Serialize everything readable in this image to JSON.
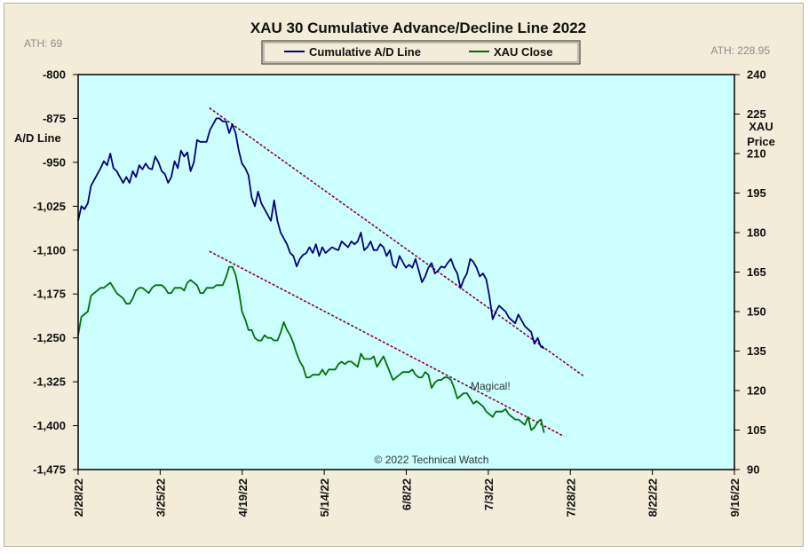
{
  "chart_data": {
    "type": "line",
    "title": "XAU 30 Cumulative  Advance/Decline  Line  2022",
    "ath_left": "ATH: 69",
    "ath_right": "ATH: 228.95",
    "ylabel_left": "A/D Line",
    "ylabel_right_line1": "XAU",
    "ylabel_right_line2": "Price",
    "copyright": "© 2022 Technical Watch",
    "annotation": "Magical!",
    "background_color": "#ccffff",
    "grid": false,
    "legend_position": "top-center",
    "x_range": [
      "2022-02-28",
      "2022-09-16"
    ],
    "x_ticks": [
      "2/28/22",
      "3/25/22",
      "4/19/22",
      "5/14/22",
      "6/8/22",
      "7/3/22",
      "7/28/22",
      "8/22/22",
      "9/16/22"
    ],
    "y_left": {
      "range": [
        -1475,
        -800
      ],
      "ticks": [
        -800,
        -875,
        -950,
        -1025,
        -1100,
        -1175,
        -1250,
        -1325,
        -1400,
        -1475
      ],
      "tick_labels": [
        "-800",
        "-875",
        "-950",
        "-1,025",
        "-1,100",
        "-1,175",
        "-1,250",
        "-1,325",
        "-1,400",
        "-1,475"
      ]
    },
    "y_right": {
      "range": [
        90,
        240
      ],
      "ticks": [
        90,
        105,
        120,
        135,
        150,
        165,
        180,
        195,
        210,
        225,
        240
      ],
      "tick_labels": [
        "90",
        "105",
        "120",
        "135",
        "150",
        "165",
        "180",
        "195",
        "210",
        "225",
        "240"
      ]
    },
    "series": [
      {
        "name": "Cumulative A/D Line",
        "axis": "left",
        "color": "#000080",
        "x": [
          0,
          1,
          2,
          3,
          4,
          5,
          6,
          7,
          8,
          9,
          10,
          11,
          12,
          13,
          14,
          15,
          16,
          17,
          18,
          19,
          20,
          21,
          22,
          23,
          24,
          25,
          26,
          27,
          28,
          29,
          30,
          31,
          32,
          33,
          34,
          35,
          36,
          37,
          38,
          39,
          40,
          41,
          42,
          43,
          44,
          45,
          46,
          47,
          48,
          49,
          50,
          51,
          52,
          53,
          54,
          55,
          56,
          57,
          58,
          59,
          60,
          61,
          62,
          63,
          64,
          65,
          66,
          67,
          68,
          69,
          70,
          71,
          72,
          73,
          74,
          75,
          76,
          77,
          78,
          79,
          80,
          81,
          82,
          83,
          84,
          85,
          86,
          87,
          88,
          89,
          90,
          91,
          92,
          93,
          94,
          95,
          96,
          97,
          98,
          99,
          100,
          101,
          102,
          103,
          104,
          105,
          106,
          107,
          108,
          109,
          110,
          111,
          112,
          113,
          114,
          115,
          116,
          117,
          118,
          119,
          120,
          121,
          122,
          123,
          124,
          125,
          126,
          127,
          128,
          129,
          130,
          131,
          132,
          133,
          134,
          135,
          136,
          137,
          138,
          139,
          140,
          141,
          142,
          143,
          144,
          145
        ],
        "values": [
          -1050,
          -1025,
          -1030,
          -1020,
          -990,
          -980,
          -970,
          -960,
          -948,
          -955,
          -935,
          -960,
          -965,
          -975,
          -985,
          -975,
          -985,
          -965,
          -975,
          -955,
          -962,
          -952,
          -960,
          -962,
          -940,
          -950,
          -965,
          -970,
          -985,
          -975,
          -948,
          -960,
          -930,
          -940,
          -933,
          -965,
          -950,
          -912,
          -915,
          -915,
          -915,
          -895,
          -885,
          -875,
          -875,
          -880,
          -880,
          -900,
          -885,
          -900,
          -930,
          -952,
          -960,
          -972,
          -1010,
          -1025,
          -1000,
          -1020,
          -1030,
          -1040,
          -1050,
          -1015,
          -1050,
          -1070,
          -1080,
          -1090,
          -1105,
          -1110,
          -1128,
          -1115,
          -1108,
          -1105,
          -1095,
          -1105,
          -1090,
          -1110,
          -1095,
          -1105,
          -1100,
          -1095,
          -1098,
          -1100,
          -1085,
          -1090,
          -1095,
          -1085,
          -1090,
          -1085,
          -1070,
          -1100,
          -1095,
          -1085,
          -1100,
          -1100,
          -1090,
          -1095,
          -1110,
          -1100,
          -1125,
          -1130,
          -1110,
          -1120,
          -1130,
          -1125,
          -1130,
          -1115,
          -1135,
          -1155,
          -1145,
          -1130,
          -1122,
          -1140,
          -1135,
          -1128,
          -1130,
          -1122,
          -1115,
          -1130,
          -1140,
          -1165,
          -1150,
          -1140,
          -1115,
          -1120,
          -1130,
          -1145,
          -1140,
          -1150,
          -1180,
          -1218,
          -1205,
          -1195,
          -1200,
          -1205,
          -1215,
          -1220,
          -1225,
          -1210,
          -1220,
          -1230,
          -1235,
          -1240,
          -1260,
          -1250,
          -1265,
          -1268
        ]
      },
      {
        "name": "XAU Close",
        "axis": "right",
        "color": "#007000",
        "x": [
          0,
          1,
          2,
          3,
          4,
          5,
          6,
          7,
          8,
          9,
          10,
          11,
          12,
          13,
          14,
          15,
          16,
          17,
          18,
          19,
          20,
          21,
          22,
          23,
          24,
          25,
          26,
          27,
          28,
          29,
          30,
          31,
          32,
          33,
          34,
          35,
          36,
          37,
          38,
          39,
          40,
          41,
          42,
          43,
          44,
          45,
          46,
          47,
          48,
          49,
          50,
          51,
          52,
          53,
          54,
          55,
          56,
          57,
          58,
          59,
          60,
          61,
          62,
          63,
          64,
          65,
          66,
          67,
          68,
          69,
          70,
          71,
          72,
          73,
          74,
          75,
          76,
          77,
          78,
          79,
          80,
          81,
          82,
          83,
          84,
          85,
          86,
          87,
          88,
          89,
          90,
          91,
          92,
          93,
          94,
          95,
          96,
          97,
          98,
          99,
          100,
          101,
          102,
          103,
          104,
          105,
          106,
          107,
          108,
          109,
          110,
          111,
          112,
          113,
          114,
          115,
          116,
          117,
          118,
          119,
          120,
          121,
          122,
          123,
          124,
          125,
          126,
          127,
          128,
          129,
          130,
          131,
          132,
          133,
          134,
          135,
          136,
          137,
          138,
          139,
          140,
          141,
          142,
          143,
          144,
          145
        ],
        "values": [
          141,
          148,
          149,
          150,
          156,
          157,
          158,
          159,
          159,
          160,
          161,
          159,
          157,
          156,
          155,
          153,
          153,
          155,
          158,
          159,
          159,
          158,
          157,
          159,
          160,
          160,
          160,
          159,
          157,
          157,
          159,
          159,
          159,
          158,
          161,
          162,
          161,
          160,
          157,
          157,
          159,
          159,
          159,
          160,
          160,
          160,
          163,
          167,
          167,
          164,
          158,
          150,
          147,
          143,
          143,
          140,
          139,
          139,
          141,
          140,
          140,
          139,
          139,
          142,
          146,
          143,
          141,
          138,
          134,
          131,
          129,
          125,
          125,
          126,
          126,
          126,
          128,
          126,
          128,
          128,
          128,
          130,
          131,
          130,
          131,
          131,
          130,
          129,
          134,
          132,
          132,
          132,
          133,
          129,
          131,
          133,
          130,
          127,
          124,
          125,
          126,
          127,
          127,
          127,
          128,
          126,
          125,
          125,
          127,
          126,
          121,
          123,
          124,
          124,
          125,
          125,
          124,
          121,
          117,
          118,
          119,
          119,
          117,
          115,
          116,
          115,
          114,
          112,
          111,
          110,
          112,
          112,
          112,
          113,
          111,
          110,
          109,
          109,
          108,
          107,
          110,
          105,
          106,
          108,
          109,
          104
        ]
      }
    ],
    "trendlines": [
      {
        "axis": "left",
        "color": "#8b0030",
        "x0_date": "2022-04-09",
        "y0": -857,
        "x1_date": "2022-08-01",
        "y1": -1315
      },
      {
        "axis": "left",
        "color": "#8b0030",
        "x0_date": "2022-04-09",
        "y0": -1102,
        "x1_date": "2022-07-26",
        "y1": -1418
      }
    ]
  },
  "legend": {
    "items": [
      {
        "label": "Cumulative A/D Line",
        "color": "#000080"
      },
      {
        "label": "XAU Close",
        "color": "#007000"
      }
    ]
  }
}
